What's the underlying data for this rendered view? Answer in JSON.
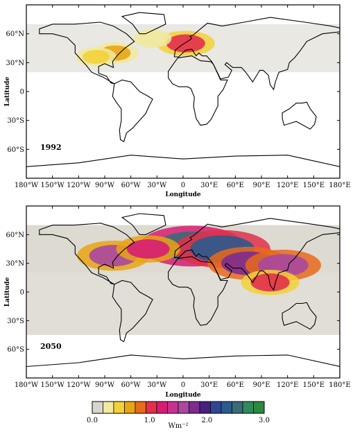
{
  "chart_data": [
    {
      "type": "heatmap",
      "year_label": "1992",
      "xlabel": "Longitude",
      "ylabel": "Latitude",
      "x_ticks": [
        "180°W",
        "150°W",
        "120°W",
        "90°W",
        "60°W",
        "30°W",
        "0",
        "30°E",
        "60°E",
        "90°E",
        "120°E",
        "150°E",
        "180°E"
      ],
      "y_ticks": [
        "60°N",
        "30°N",
        "0",
        "30°S",
        "60°S"
      ],
      "x_values": [
        -180,
        -150,
        -120,
        -90,
        -60,
        -30,
        0,
        30,
        60,
        90,
        120,
        150,
        180
      ],
      "y_values": [
        60,
        30,
        0,
        -30,
        -60
      ],
      "xlim": [
        -180,
        180
      ],
      "ylim": [
        -90,
        90
      ],
      "hotspots": [
        {
          "lon": 3,
          "lat": 50,
          "value": 1.0
        },
        {
          "lon": -78,
          "lat": 40,
          "value": 0.6
        },
        {
          "lon": -100,
          "lat": 36,
          "value": 0.4
        },
        {
          "lon": -35,
          "lat": 55,
          "value": 0.3
        }
      ]
    },
    {
      "type": "heatmap",
      "year_label": "2050",
      "xlabel": "Longitude",
      "ylabel": "Latitude",
      "x_ticks": [
        "180°W",
        "150°W",
        "120°W",
        "90°W",
        "60°W",
        "30°W",
        "0",
        "30°E",
        "60°E",
        "90°E",
        "120°E",
        "150°E",
        "180°E"
      ],
      "y_ticks": [
        "60°N",
        "30°N",
        "0",
        "30°S",
        "60°S"
      ],
      "x_values": [
        -180,
        -150,
        -120,
        -90,
        -60,
        -30,
        0,
        30,
        60,
        90,
        120,
        150,
        180
      ],
      "y_values": [
        60,
        30,
        0,
        -30,
        -60
      ],
      "xlim": [
        -180,
        180
      ],
      "ylim": [
        -90,
        90
      ],
      "hotspots": [
        {
          "lon": 10,
          "lat": 48,
          "value": 2.6
        },
        {
          "lon": 45,
          "lat": 45,
          "value": 2.3
        },
        {
          "lon": 75,
          "lat": 30,
          "value": 1.8
        },
        {
          "lon": 115,
          "lat": 28,
          "value": 1.6
        },
        {
          "lon": -80,
          "lat": 38,
          "value": 1.5
        },
        {
          "lon": -40,
          "lat": 45,
          "value": 1.2
        },
        {
          "lon": 100,
          "lat": 10,
          "value": 1.0
        }
      ]
    }
  ],
  "colorbar": {
    "unit": "Wm⁻²",
    "tick_labels": [
      "0.0",
      "1.0",
      "2.0",
      "3.0"
    ],
    "tick_values": [
      0,
      1,
      2,
      3
    ],
    "colors": [
      "#d8d6cc",
      "#f0e9a0",
      "#f2d13a",
      "#e8a514",
      "#e86a1c",
      "#e2304a",
      "#d61d73",
      "#c8328f",
      "#a9489f",
      "#7d2c8e",
      "#45207e",
      "#314596",
      "#2c5a8c",
      "#3a6b77",
      "#2f8a5c",
      "#2b8a3e"
    ]
  }
}
